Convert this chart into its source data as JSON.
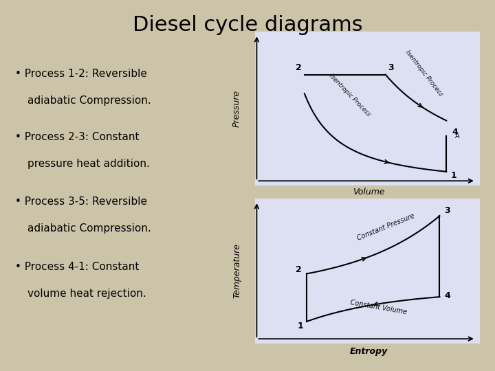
{
  "title": "Diesel cycle diagrams",
  "bg_color": "#cbc4a8",
  "diagram_bg": "#dde0f2",
  "title_fontsize": 22,
  "bullet_fontsize": 11,
  "bullet_points": [
    [
      "Process 1-2: Reversible",
      "adiabatic Compression."
    ],
    [
      "Process 2-3: Constant",
      "pressure heat addition."
    ],
    [
      "Process 3-5: Reversible",
      "adiabatic Compression."
    ],
    [
      "Process 4-1: Constant",
      "volume heat rejection."
    ]
  ],
  "pv_xlabel": "Volume",
  "pv_ylabel": "Pressure",
  "ts_xlabel": "Entropy",
  "ts_ylabel": "Temperature",
  "text_color": "#000000"
}
